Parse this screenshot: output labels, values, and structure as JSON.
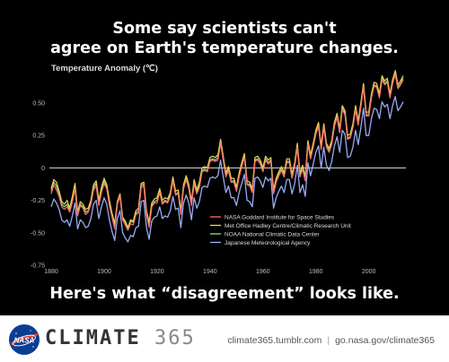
{
  "headline": {
    "line1": "Some say scientists can't",
    "line2": "agree on Earth's temperature changes.",
    "bottom": "Here's what “disagreement” looks like."
  },
  "footer": {
    "brand_word": "CLIMATE",
    "brand_num": "365",
    "link1": "climate365.tumblr.com",
    "separator": "|",
    "link2": "go.nasa.gov/climate365",
    "logo_icon": "nasa-logo-icon"
  },
  "colors": {
    "background": "#000000",
    "zero_line": "#dddddd",
    "nasa_logo_blue": "#0b3d91",
    "nasa_logo_red": "#fc3d21"
  },
  "chart_data": {
    "type": "line",
    "ylabel": "Temperature Anomaly (℃)",
    "xlabel": "",
    "xlim": [
      1880,
      2013
    ],
    "ylim": [
      -0.75,
      0.7
    ],
    "x_ticks": [
      1880,
      1900,
      1920,
      1940,
      1960,
      1980,
      2000
    ],
    "y_ticks": [
      {
        "value": 0.5,
        "label": "0.50"
      },
      {
        "value": 0.25,
        "label": "0.25"
      },
      {
        "value": 0,
        "label": "0"
      },
      {
        "value": -0.25,
        "label": "-0.25"
      },
      {
        "value": -0.5,
        "label": "-0.50"
      },
      {
        "value": -0.75,
        "label": "-0.75"
      }
    ],
    "grid": false,
    "legend_position": "lower-right",
    "years_start": 1880,
    "series": [
      {
        "name": "NASA Goddard Institute for Space Studies",
        "color": "#ff6f6f",
        "values": [
          -0.2,
          -0.13,
          -0.17,
          -0.22,
          -0.3,
          -0.32,
          -0.3,
          -0.34,
          -0.26,
          -0.16,
          -0.37,
          -0.29,
          -0.31,
          -0.36,
          -0.34,
          -0.28,
          -0.17,
          -0.14,
          -0.29,
          -0.19,
          -0.12,
          -0.16,
          -0.29,
          -0.38,
          -0.47,
          -0.28,
          -0.22,
          -0.4,
          -0.44,
          -0.48,
          -0.43,
          -0.44,
          -0.36,
          -0.35,
          -0.15,
          -0.14,
          -0.36,
          -0.46,
          -0.3,
          -0.27,
          -0.27,
          -0.19,
          -0.28,
          -0.26,
          -0.27,
          -0.22,
          -0.1,
          -0.21,
          -0.2,
          -0.36,
          -0.16,
          -0.09,
          -0.16,
          -0.29,
          -0.12,
          -0.2,
          -0.15,
          -0.03,
          -0.02,
          -0.03,
          0.05,
          0.06,
          0.05,
          0.06,
          0.19,
          0.06,
          -0.07,
          -0.02,
          -0.11,
          -0.11,
          -0.18,
          -0.07,
          0.01,
          0.08,
          -0.13,
          -0.14,
          -0.19,
          0.05,
          0.06,
          0.03,
          -0.03,
          0.06,
          0.03,
          0.05,
          -0.2,
          -0.11,
          -0.06,
          -0.02,
          -0.07,
          0.04,
          0.04,
          -0.08,
          0.01,
          0.16,
          -0.07,
          -0.01,
          -0.1,
          0.18,
          0.07,
          0.16,
          0.26,
          0.32,
          0.14,
          0.31,
          0.16,
          0.12,
          0.18,
          0.32,
          0.39,
          0.27,
          0.45,
          0.41,
          0.22,
          0.23,
          0.31,
          0.45,
          0.33,
          0.47,
          0.62,
          0.4,
          0.4,
          0.54,
          0.63,
          0.62,
          0.54,
          0.68,
          0.64,
          0.66,
          0.54,
          0.65,
          0.72,
          0.61,
          0.64,
          0.68
        ]
      },
      {
        "name": "Met Office Hadley Centre/Climatic Research Unit",
        "color": "#e9dd4a",
        "values": [
          -0.16,
          -0.09,
          -0.11,
          -0.18,
          -0.26,
          -0.28,
          -0.25,
          -0.31,
          -0.22,
          -0.12,
          -0.34,
          -0.26,
          -0.28,
          -0.32,
          -0.31,
          -0.25,
          -0.13,
          -0.1,
          -0.25,
          -0.15,
          -0.08,
          -0.13,
          -0.25,
          -0.35,
          -0.43,
          -0.26,
          -0.2,
          -0.38,
          -0.41,
          -0.46,
          -0.4,
          -0.41,
          -0.33,
          -0.31,
          -0.12,
          -0.11,
          -0.33,
          -0.42,
          -0.27,
          -0.24,
          -0.23,
          -0.16,
          -0.25,
          -0.23,
          -0.24,
          -0.19,
          -0.07,
          -0.18,
          -0.17,
          -0.33,
          -0.13,
          -0.06,
          -0.13,
          -0.26,
          -0.09,
          -0.17,
          -0.11,
          0.0,
          0.01,
          0.0,
          0.08,
          0.09,
          0.08,
          0.1,
          0.22,
          0.09,
          -0.04,
          0.01,
          -0.08,
          -0.08,
          -0.15,
          -0.04,
          0.04,
          0.11,
          -0.1,
          -0.11,
          -0.16,
          0.08,
          0.09,
          0.06,
          0.0,
          0.09,
          0.06,
          0.08,
          -0.17,
          -0.08,
          -0.03,
          0.01,
          -0.04,
          0.07,
          0.07,
          -0.05,
          0.04,
          0.19,
          -0.04,
          0.02,
          -0.07,
          0.21,
          0.1,
          0.19,
          0.29,
          0.35,
          0.17,
          0.34,
          0.19,
          0.15,
          0.21,
          0.35,
          0.42,
          0.3,
          0.48,
          0.44,
          0.25,
          0.26,
          0.34,
          0.48,
          0.36,
          0.5,
          0.65,
          0.43,
          0.43,
          0.57,
          0.66,
          0.65,
          0.57,
          0.71,
          0.67,
          0.69,
          0.57,
          0.68,
          0.75,
          0.64,
          0.67,
          0.71
        ]
      },
      {
        "name": "NOAA National Climatic Data Center",
        "color": "#8fdc8f",
        "values": [
          -0.18,
          -0.11,
          -0.14,
          -0.2,
          -0.28,
          -0.3,
          -0.28,
          -0.33,
          -0.25,
          -0.14,
          -0.36,
          -0.28,
          -0.3,
          -0.34,
          -0.33,
          -0.27,
          -0.15,
          -0.12,
          -0.27,
          -0.17,
          -0.1,
          -0.15,
          -0.27,
          -0.37,
          -0.45,
          -0.27,
          -0.21,
          -0.39,
          -0.43,
          -0.47,
          -0.41,
          -0.42,
          -0.35,
          -0.33,
          -0.13,
          -0.13,
          -0.35,
          -0.44,
          -0.29,
          -0.26,
          -0.25,
          -0.18,
          -0.27,
          -0.25,
          -0.26,
          -0.21,
          -0.09,
          -0.2,
          -0.19,
          -0.35,
          -0.15,
          -0.08,
          -0.15,
          -0.28,
          -0.11,
          -0.19,
          -0.13,
          -0.02,
          -0.01,
          -0.02,
          0.06,
          0.07,
          0.06,
          0.08,
          0.2,
          0.07,
          -0.06,
          -0.01,
          -0.1,
          -0.1,
          -0.17,
          -0.06,
          0.02,
          0.09,
          -0.12,
          -0.13,
          -0.18,
          0.06,
          0.07,
          0.04,
          -0.02,
          0.07,
          0.04,
          0.06,
          -0.19,
          -0.1,
          -0.05,
          -0.01,
          -0.06,
          0.05,
          0.05,
          -0.07,
          0.02,
          0.17,
          -0.06,
          0.0,
          -0.09,
          0.19,
          0.08,
          0.17,
          0.27,
          0.33,
          0.15,
          0.32,
          0.17,
          0.13,
          0.19,
          0.33,
          0.4,
          0.28,
          0.46,
          0.42,
          0.23,
          0.24,
          0.32,
          0.46,
          0.34,
          0.48,
          0.63,
          0.41,
          0.41,
          0.55,
          0.64,
          0.63,
          0.55,
          0.69,
          0.65,
          0.67,
          0.55,
          0.66,
          0.73,
          0.62,
          0.65,
          0.69
        ]
      },
      {
        "name": "Japanese Meteorological Agency",
        "color": "#9fb3ff",
        "values": [
          -0.3,
          -0.24,
          -0.27,
          -0.32,
          -0.4,
          -0.42,
          -0.4,
          -0.45,
          -0.37,
          -0.27,
          -0.47,
          -0.4,
          -0.42,
          -0.46,
          -0.45,
          -0.39,
          -0.28,
          -0.25,
          -0.39,
          -0.3,
          -0.23,
          -0.28,
          -0.4,
          -0.49,
          -0.56,
          -0.39,
          -0.33,
          -0.5,
          -0.54,
          -0.57,
          -0.52,
          -0.53,
          -0.46,
          -0.45,
          -0.26,
          -0.25,
          -0.46,
          -0.55,
          -0.41,
          -0.38,
          -0.37,
          -0.3,
          -0.39,
          -0.37,
          -0.38,
          -0.33,
          -0.22,
          -0.32,
          -0.31,
          -0.46,
          -0.27,
          -0.21,
          -0.27,
          -0.4,
          -0.23,
          -0.31,
          -0.26,
          -0.15,
          -0.14,
          -0.15,
          -0.08,
          -0.07,
          -0.08,
          -0.06,
          0.06,
          -0.07,
          -0.19,
          -0.14,
          -0.23,
          -0.23,
          -0.29,
          -0.19,
          -0.12,
          -0.05,
          -0.25,
          -0.26,
          -0.3,
          -0.08,
          -0.07,
          -0.1,
          -0.15,
          -0.07,
          -0.1,
          -0.08,
          -0.31,
          -0.23,
          -0.18,
          -0.14,
          -0.19,
          -0.09,
          -0.09,
          -0.2,
          -0.12,
          0.02,
          -0.19,
          -0.13,
          -0.22,
          0.04,
          -0.06,
          0.03,
          0.12,
          0.17,
          0.0,
          0.16,
          0.02,
          -0.02,
          0.05,
          0.17,
          0.24,
          0.12,
          0.29,
          0.26,
          0.08,
          0.09,
          0.16,
          0.29,
          0.18,
          0.31,
          0.46,
          0.25,
          0.25,
          0.38,
          0.46,
          0.45,
          0.38,
          0.51,
          0.47,
          0.49,
          0.38,
          0.48,
          0.55,
          0.44,
          0.47,
          0.51
        ]
      }
    ]
  }
}
